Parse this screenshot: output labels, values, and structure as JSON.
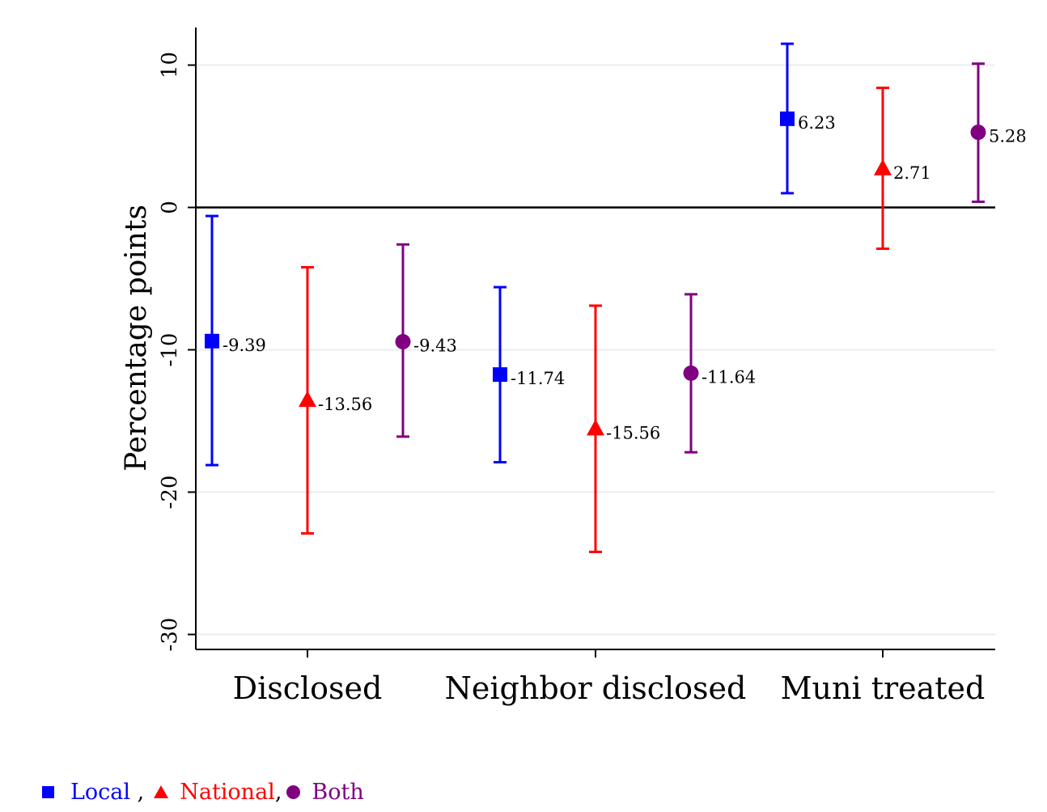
{
  "chart_data": {
    "type": "scatter",
    "subtype": "point-estimates-with-error-bars",
    "title": "",
    "xlabel": "",
    "ylabel": "Percentage points",
    "ylim": [
      -30,
      12
    ],
    "yticks": [
      10,
      0,
      -10,
      -20,
      -30
    ],
    "ytick_labels": [
      "10",
      "0",
      "-10",
      "-20",
      "-30"
    ],
    "categories": [
      "Disclosed",
      "Neighbor disclosed",
      "Muni treated"
    ],
    "grid": true,
    "reference_line": 0,
    "legend_position": "bottom-left",
    "series": [
      {
        "name": "Local",
        "marker": "square",
        "color": "#0000ff",
        "values": [
          -9.39,
          -11.74,
          6.23
        ],
        "labels": [
          "-9.39",
          "-11.74",
          "6.23"
        ],
        "ci_low": [
          -18.1,
          -17.9,
          1.0
        ],
        "ci_high": [
          -0.6,
          -5.6,
          11.5
        ]
      },
      {
        "name": "National",
        "marker": "triangle",
        "color": "#ff0000",
        "values": [
          -13.56,
          -15.56,
          2.71
        ],
        "labels": [
          "-13.56",
          "-15.56",
          "2.71"
        ],
        "ci_low": [
          -22.9,
          -24.2,
          -2.9
        ],
        "ci_high": [
          -4.2,
          -6.9,
          8.4
        ]
      },
      {
        "name": "Both",
        "marker": "circle",
        "color": "#800080",
        "values": [
          -9.43,
          -11.64,
          5.28
        ],
        "labels": [
          "-9.43",
          "-11.64",
          "5.28"
        ],
        "ci_low": [
          -16.1,
          -17.2,
          0.4
        ],
        "ci_high": [
          -2.6,
          -6.1,
          10.1
        ]
      }
    ]
  },
  "legend": {
    "items": [
      {
        "label": "Local",
        "separator": " ,",
        "color": "#0000ff",
        "icon": "square-icon"
      },
      {
        "label": "National",
        "separator": ",",
        "color": "#ff0000",
        "icon": "triangle-icon"
      },
      {
        "label": "Both",
        "separator": "",
        "color": "#800080",
        "icon": "circle-icon"
      }
    ]
  }
}
